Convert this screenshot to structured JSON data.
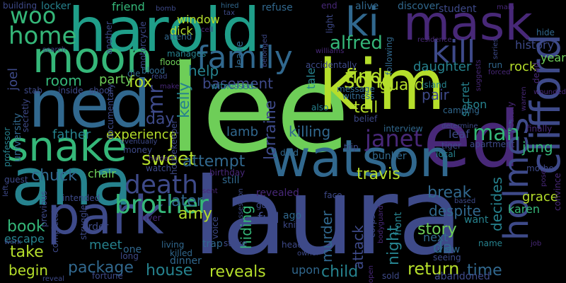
{
  "background": "#000000",
  "palette": [
    "#440154",
    "#482878",
    "#3e4a89",
    "#31688e",
    "#26828e",
    "#1f9e89",
    "#35b779",
    "#6ece58",
    "#b5de2b",
    "#fde725"
  ],
  "words": [
    {
      "text": "lee",
      "color": "#6ece58",
      "vertical": false
    },
    {
      "text": "laura",
      "color": "#3e4a89",
      "vertical": false
    },
    {
      "text": "kim",
      "color": "#b5de2b",
      "vertical": false
    },
    {
      "text": "harold",
      "color": "#1f9e89",
      "vertical": false
    },
    {
      "text": "ned",
      "color": "#31688e",
      "vertical": false
    },
    {
      "text": "ed",
      "color": "#482878",
      "vertical": false
    },
    {
      "text": "ana",
      "color": "#26828e",
      "vertical": false
    },
    {
      "text": "watson",
      "color": "#31688e",
      "vertical": false
    },
    {
      "text": "park",
      "color": "#3e4a89",
      "vertical": false
    },
    {
      "text": "snake",
      "color": "#35b779",
      "vertical": false
    },
    {
      "text": "mask",
      "color": "#482878",
      "vertical": false
    },
    {
      "text": "moon",
      "color": "#35b779",
      "vertical": false
    },
    {
      "text": "family",
      "color": "#31688e",
      "vertical": false
    },
    {
      "text": "kill",
      "color": "#3e4a89",
      "vertical": false
    },
    {
      "text": "ki",
      "color": "#31688e",
      "vertical": false
    },
    {
      "text": "woo",
      "color": "#35b779",
      "vertical": false
    },
    {
      "text": "home",
      "color": "#35b779",
      "vertical": false
    },
    {
      "text": "clifford",
      "color": "#3e4a89",
      "vertical": true
    },
    {
      "text": "holmes",
      "color": "#3e4a89",
      "vertical": true
    },
    {
      "text": "brother",
      "color": "#35b779",
      "vertical": false
    },
    {
      "text": "death",
      "color": "#3e4a89",
      "vertical": false
    },
    {
      "text": "janet",
      "color": "#482878",
      "vertical": false
    },
    {
      "text": "find",
      "color": "#b5de2b",
      "vertical": false
    },
    {
      "text": "song",
      "color": "#b5de2b",
      "vertical": false
    },
    {
      "text": "alfred",
      "color": "#35b779",
      "vertical": false
    },
    {
      "text": "guard",
      "color": "#b5de2b",
      "vertical": false
    },
    {
      "text": "man",
      "color": "#35b779",
      "vertical": false
    },
    {
      "text": "fox",
      "color": "#b5de2b",
      "vertical": false
    },
    {
      "text": "mr",
      "color": "#3e4a89",
      "vertical": true
    },
    {
      "text": "help",
      "color": "#26828e",
      "vertical": false
    },
    {
      "text": "room",
      "color": "#35b779",
      "vertical": false
    },
    {
      "text": "party",
      "color": "#6ece58",
      "vertical": false
    },
    {
      "text": "joel",
      "color": "#3e4a89",
      "vertical": true
    },
    {
      "text": "basement",
      "color": "#3e4a89",
      "vertical": false
    },
    {
      "text": "tell",
      "color": "#b5de2b",
      "vertical": false
    },
    {
      "text": "pair",
      "color": "#3e4a89",
      "vertical": false
    },
    {
      "text": "daughter",
      "color": "#26828e",
      "vertical": false
    },
    {
      "text": "rock",
      "color": "#b5de2b",
      "vertical": false
    },
    {
      "text": "history",
      "color": "#3e4a89",
      "vertical": false
    },
    {
      "text": "year",
      "color": "#6ece58",
      "vertical": false
    },
    {
      "text": "decides",
      "color": "#26828e",
      "vertical": true
    },
    {
      "text": "sweet",
      "color": "#b5de2b",
      "vertical": false
    },
    {
      "text": "attempt",
      "color": "#31688e",
      "vertical": false
    },
    {
      "text": "j",
      "color": "#b5de2b",
      "vertical": false
    },
    {
      "text": "kelly",
      "color": "#26828e",
      "vertical": true
    },
    {
      "text": "day",
      "color": "#3e4a89",
      "vertical": false
    },
    {
      "text": "experience",
      "color": "#b5de2b",
      "vertical": false
    },
    {
      "text": "father",
      "color": "#26828e",
      "vertical": false
    },
    {
      "text": "chuck",
      "color": "#31688e",
      "vertical": false
    },
    {
      "text": "chair",
      "color": "#6ece58",
      "vertical": false
    },
    {
      "text": "lamb",
      "color": "#31688e",
      "vertical": false
    },
    {
      "text": "lorraine",
      "color": "#3e4a89",
      "vertical": true
    },
    {
      "text": "killing",
      "color": "#31688e",
      "vertical": false
    },
    {
      "text": "jung",
      "color": "#35b779",
      "vertical": false
    },
    {
      "text": "leaf",
      "color": "#3e4a89",
      "vertical": false
    },
    {
      "text": "bunker",
      "color": "#31688e",
      "vertical": false
    },
    {
      "text": "travis",
      "color": "#b5de2b",
      "vertical": false
    },
    {
      "text": "break",
      "color": "#31688e",
      "vertical": false
    },
    {
      "text": "despite",
      "color": "#31688e",
      "vertical": false
    },
    {
      "text": "grace",
      "color": "#b5de2b",
      "vertical": false
    },
    {
      "text": "karen",
      "color": "#35b779",
      "vertical": false
    },
    {
      "text": "brother",
      "color": "#35b779",
      "vertical": false
    },
    {
      "text": "amy",
      "color": "#b5de2b",
      "vertical": false
    },
    {
      "text": "later",
      "color": "#31688e",
      "vertical": false
    },
    {
      "text": "book",
      "color": "#35b779",
      "vertical": false
    },
    {
      "text": "escape",
      "color": "#26828e",
      "vertical": false
    },
    {
      "text": "take",
      "color": "#b5de2b",
      "vertical": false
    },
    {
      "text": "begin",
      "color": "#b5de2b",
      "vertical": false
    },
    {
      "text": "meet",
      "color": "#26828e",
      "vertical": false
    },
    {
      "text": "package",
      "color": "#31688e",
      "vertical": false
    },
    {
      "text": "house",
      "color": "#26828e",
      "vertical": false
    },
    {
      "text": "reveals",
      "color": "#b5de2b",
      "vertical": false
    },
    {
      "text": "child",
      "color": "#26828e",
      "vertical": false
    },
    {
      "text": "return",
      "color": "#b5de2b",
      "vertical": false
    },
    {
      "text": "time",
      "color": "#31688e",
      "vertical": false
    },
    {
      "text": "story",
      "color": "#6ece58",
      "vertical": false
    },
    {
      "text": "da",
      "color": "#31688e",
      "vertical": false
    },
    {
      "text": "next",
      "color": "#31688e",
      "vertical": false
    },
    {
      "text": "night",
      "color": "#26828e",
      "vertical": true
    },
    {
      "text": "murder",
      "color": "#31688e",
      "vertical": true
    },
    {
      "text": "hiding",
      "color": "#35b779",
      "vertical": true
    },
    {
      "text": "attack",
      "color": "#3e4a89",
      "vertical": true
    },
    {
      "text": "full",
      "color": "#3e4a89",
      "vertical": false
    },
    {
      "text": "revealed",
      "color": "#482878",
      "vertical": false
    },
    {
      "text": "still",
      "color": "#31688e",
      "vertical": false
    },
    {
      "text": "upon",
      "color": "#31688e",
      "vertical": false
    },
    {
      "text": "want",
      "color": "#26828e",
      "vertical": false
    },
    {
      "text": "secret",
      "color": "#26828e",
      "vertical": true
    },
    {
      "text": "son",
      "color": "#26828e",
      "vertical": false
    },
    {
      "text": "dick",
      "color": "#b5de2b",
      "vertical": false
    },
    {
      "text": "window",
      "color": "#b5de2b",
      "vertical": false
    },
    {
      "text": "leave",
      "color": "#31688e",
      "vertical": true
    },
    {
      "text": "tale",
      "color": "#26828e",
      "vertical": true
    },
    {
      "text": "refuse",
      "color": "#31688e",
      "vertical": false
    },
    {
      "text": "friend",
      "color": "#35b779",
      "vertical": false
    },
    {
      "text": "discover",
      "color": "#31688e",
      "vertical": false
    },
    {
      "text": "student",
      "color": "#3e4a89",
      "vertical": false
    },
    {
      "text": "locker",
      "color": "#26828e",
      "vertical": false
    },
    {
      "text": "alive",
      "color": "#31688e",
      "vertical": false
    },
    {
      "text": "building",
      "color": "#3e4a89",
      "vertical": false
    },
    {
      "text": "motorcycle",
      "color": "#3e4a89",
      "vertical": true
    },
    {
      "text": "bomb",
      "color": "#3e4a89",
      "vertical": false
    },
    {
      "text": "hired",
      "color": "#31688e",
      "vertical": false
    },
    {
      "text": "tax",
      "color": "#3e4a89",
      "vertical": false
    },
    {
      "text": "end",
      "color": "#482878",
      "vertical": false
    },
    {
      "text": "main",
      "color": "#482878",
      "vertical": false
    },
    {
      "text": "hide",
      "color": "#31688e",
      "vertical": false
    },
    {
      "text": "wounded",
      "color": "#482878",
      "vertical": false
    },
    {
      "text": "manages",
      "color": "#26828e",
      "vertical": false
    },
    {
      "text": "flooded",
      "color": "#6ece58",
      "vertical": false
    },
    {
      "text": "blood",
      "color": "#31688e",
      "vertical": false
    },
    {
      "text": "die",
      "color": "#31688e",
      "vertical": false
    },
    {
      "text": "read",
      "color": "#3e4a89",
      "vertical": false
    },
    {
      "text": "make",
      "color": "#482878",
      "vertical": false
    },
    {
      "text": "attend",
      "color": "#31688e",
      "vertical": false
    },
    {
      "text": "witnessed",
      "color": "#26828e",
      "vertical": false
    },
    {
      "text": "accidentally",
      "color": "#3e4a89",
      "vertical": false
    },
    {
      "text": "message",
      "color": "#31688e",
      "vertical": false
    },
    {
      "text": "witness",
      "color": "#31688e",
      "vertical": false
    },
    {
      "text": "island",
      "color": "#26828e",
      "vertical": false
    },
    {
      "text": "camping",
      "color": "#31688e",
      "vertical": false
    },
    {
      "text": "run",
      "color": "#31688e",
      "vertical": false
    },
    {
      "text": "forced",
      "color": "#482878",
      "vertical": false
    },
    {
      "text": "wealthy",
      "color": "#482878",
      "vertical": true
    },
    {
      "text": "interview",
      "color": "#31688e",
      "vertical": false
    },
    {
      "text": "also",
      "color": "#26828e",
      "vertical": false
    },
    {
      "text": "belief",
      "color": "#3e4a89",
      "vertical": false
    },
    {
      "text": "trip",
      "color": "#3e4a89",
      "vertical": false
    },
    {
      "text": "determine",
      "color": "#3e4a89",
      "vertical": false
    },
    {
      "text": "finally",
      "color": "#482878",
      "vertical": false
    },
    {
      "text": "tiger",
      "color": "#3e4a89",
      "vertical": false
    },
    {
      "text": "apartment",
      "color": "#3e4a89",
      "vertical": false
    },
    {
      "text": "local",
      "color": "#26828e",
      "vertical": false
    },
    {
      "text": "died",
      "color": "#31688e",
      "vertical": false
    },
    {
      "text": "sold",
      "color": "#3e4a89",
      "vertical": false
    },
    {
      "text": "abandoned",
      "color": "#3e4a89",
      "vertical": false
    },
    {
      "text": "seeing",
      "color": "#3e4a89",
      "vertical": false
    },
    {
      "text": "name",
      "color": "#26828e",
      "vertical": false
    },
    {
      "text": "view",
      "color": "#31688e",
      "vertical": false
    },
    {
      "text": "front",
      "color": "#26828e",
      "vertical": true
    },
    {
      "text": "corpse",
      "color": "#3e4a89",
      "vertical": true
    },
    {
      "text": "bodyguard",
      "color": "#482878",
      "vertical": true
    },
    {
      "text": "ago",
      "color": "#31688e",
      "vertical": false
    },
    {
      "text": "knife",
      "color": "#3e4a89",
      "vertical": false
    },
    {
      "text": "head",
      "color": "#3e4a89",
      "vertical": false
    },
    {
      "text": "owner",
      "color": "#3e4a89",
      "vertical": false
    },
    {
      "text": "strike",
      "color": "#3e4a89",
      "vertical": false
    },
    {
      "text": "voice",
      "color": "#3e4a89",
      "vertical": true
    },
    {
      "text": "dinner",
      "color": "#31688e",
      "vertical": false
    },
    {
      "text": "killed",
      "color": "#31688e",
      "vertical": false
    },
    {
      "text": "trap",
      "color": "#31688e",
      "vertical": false
    },
    {
      "text": "living",
      "color": "#31688e",
      "vertical": false
    },
    {
      "text": "long",
      "color": "#3e4a89",
      "vertical": false
    },
    {
      "text": "one",
      "color": "#31688e",
      "vertical": false
    },
    {
      "text": "order",
      "color": "#3e4a89",
      "vertical": false
    },
    {
      "text": "reveal",
      "color": "#3e4a89",
      "vertical": false
    },
    {
      "text": "fortune",
      "color": "#3e4a89",
      "vertical": false
    },
    {
      "text": "work",
      "color": "#3e4a89",
      "vertical": false
    },
    {
      "text": "guest",
      "color": "#3e4a89",
      "vertical": false
    },
    {
      "text": "university",
      "color": "#31688e",
      "vertical": true
    },
    {
      "text": "professor",
      "color": "#26828e",
      "vertical": true
    },
    {
      "text": "secretly",
      "color": "#3e4a89",
      "vertical": true
    },
    {
      "text": "stab",
      "color": "#3e4a89",
      "vertical": false
    },
    {
      "text": "inside",
      "color": "#3e4a89",
      "vertical": false
    },
    {
      "text": "shoot",
      "color": "#3e4a89",
      "vertical": false
    },
    {
      "text": "documentary",
      "color": "#3e4a89",
      "vertical": true
    },
    {
      "text": "housekeeper",
      "color": "#3e4a89",
      "vertical": true
    },
    {
      "text": "money",
      "color": "#3e4a89",
      "vertical": false
    },
    {
      "text": "watch",
      "color": "#3e4a89",
      "vertical": false
    },
    {
      "text": "birthday",
      "color": "#482878",
      "vertical": false
    },
    {
      "text": "sent",
      "color": "#482878",
      "vertical": false
    },
    {
      "text": "river",
      "color": "#482878",
      "vertical": false
    },
    {
      "text": "intended",
      "color": "#3e4a89",
      "vertical": false
    },
    {
      "text": "mother",
      "color": "#3e4a89",
      "vertical": false
    },
    {
      "text": "convince",
      "color": "#482878",
      "vertical": true
    },
    {
      "text": "pose",
      "color": "#482878",
      "vertical": true
    },
    {
      "text": "job",
      "color": "#482878",
      "vertical": false
    },
    {
      "text": "williams",
      "color": "#482878",
      "vertical": false
    },
    {
      "text": "following",
      "color": "#31688e",
      "vertical": true
    },
    {
      "text": "belonged",
      "color": "#3e4a89",
      "vertical": true
    },
    {
      "text": "light",
      "color": "#3e4a89",
      "vertical": true
    },
    {
      "text": "series",
      "color": "#3e4a89",
      "vertical": true
    },
    {
      "text": "suggests",
      "color": "#482878",
      "vertical": true
    },
    {
      "text": "residence",
      "color": "#482878",
      "vertical": false
    },
    {
      "text": "dead",
      "color": "#482878",
      "vertical": true
    },
    {
      "text": "warren",
      "color": "#482878",
      "vertical": true
    },
    {
      "text": "eventually",
      "color": "#3e4a89",
      "vertical": false
    },
    {
      "text": "cell",
      "color": "#482878",
      "vertical": false
    },
    {
      "text": "another",
      "color": "#3e4a89",
      "vertical": true
    },
    {
      "text": "search",
      "color": "#3e4a89",
      "vertical": false
    },
    {
      "text": "hidden",
      "color": "#482878",
      "vertical": false
    },
    {
      "text": "go",
      "color": "#3e4a89",
      "vertical": false
    },
    {
      "text": "face",
      "color": "#3e4a89",
      "vertical": false
    },
    {
      "text": "possession",
      "color": "#3e4a89",
      "vertical": true
    },
    {
      "text": "based",
      "color": "#3e4a89",
      "vertical": false
    },
    {
      "text": "completely",
      "color": "#3e4a89",
      "vertical": true
    },
    {
      "text": "previous",
      "color": "#3e4a89",
      "vertical": true
    },
    {
      "text": "struggle",
      "color": "#3e4a89",
      "vertical": true
    },
    {
      "text": "left",
      "color": "#3e4a89",
      "vertical": true
    },
    {
      "text": "open",
      "color": "#482878",
      "vertical": true
    }
  ]
}
